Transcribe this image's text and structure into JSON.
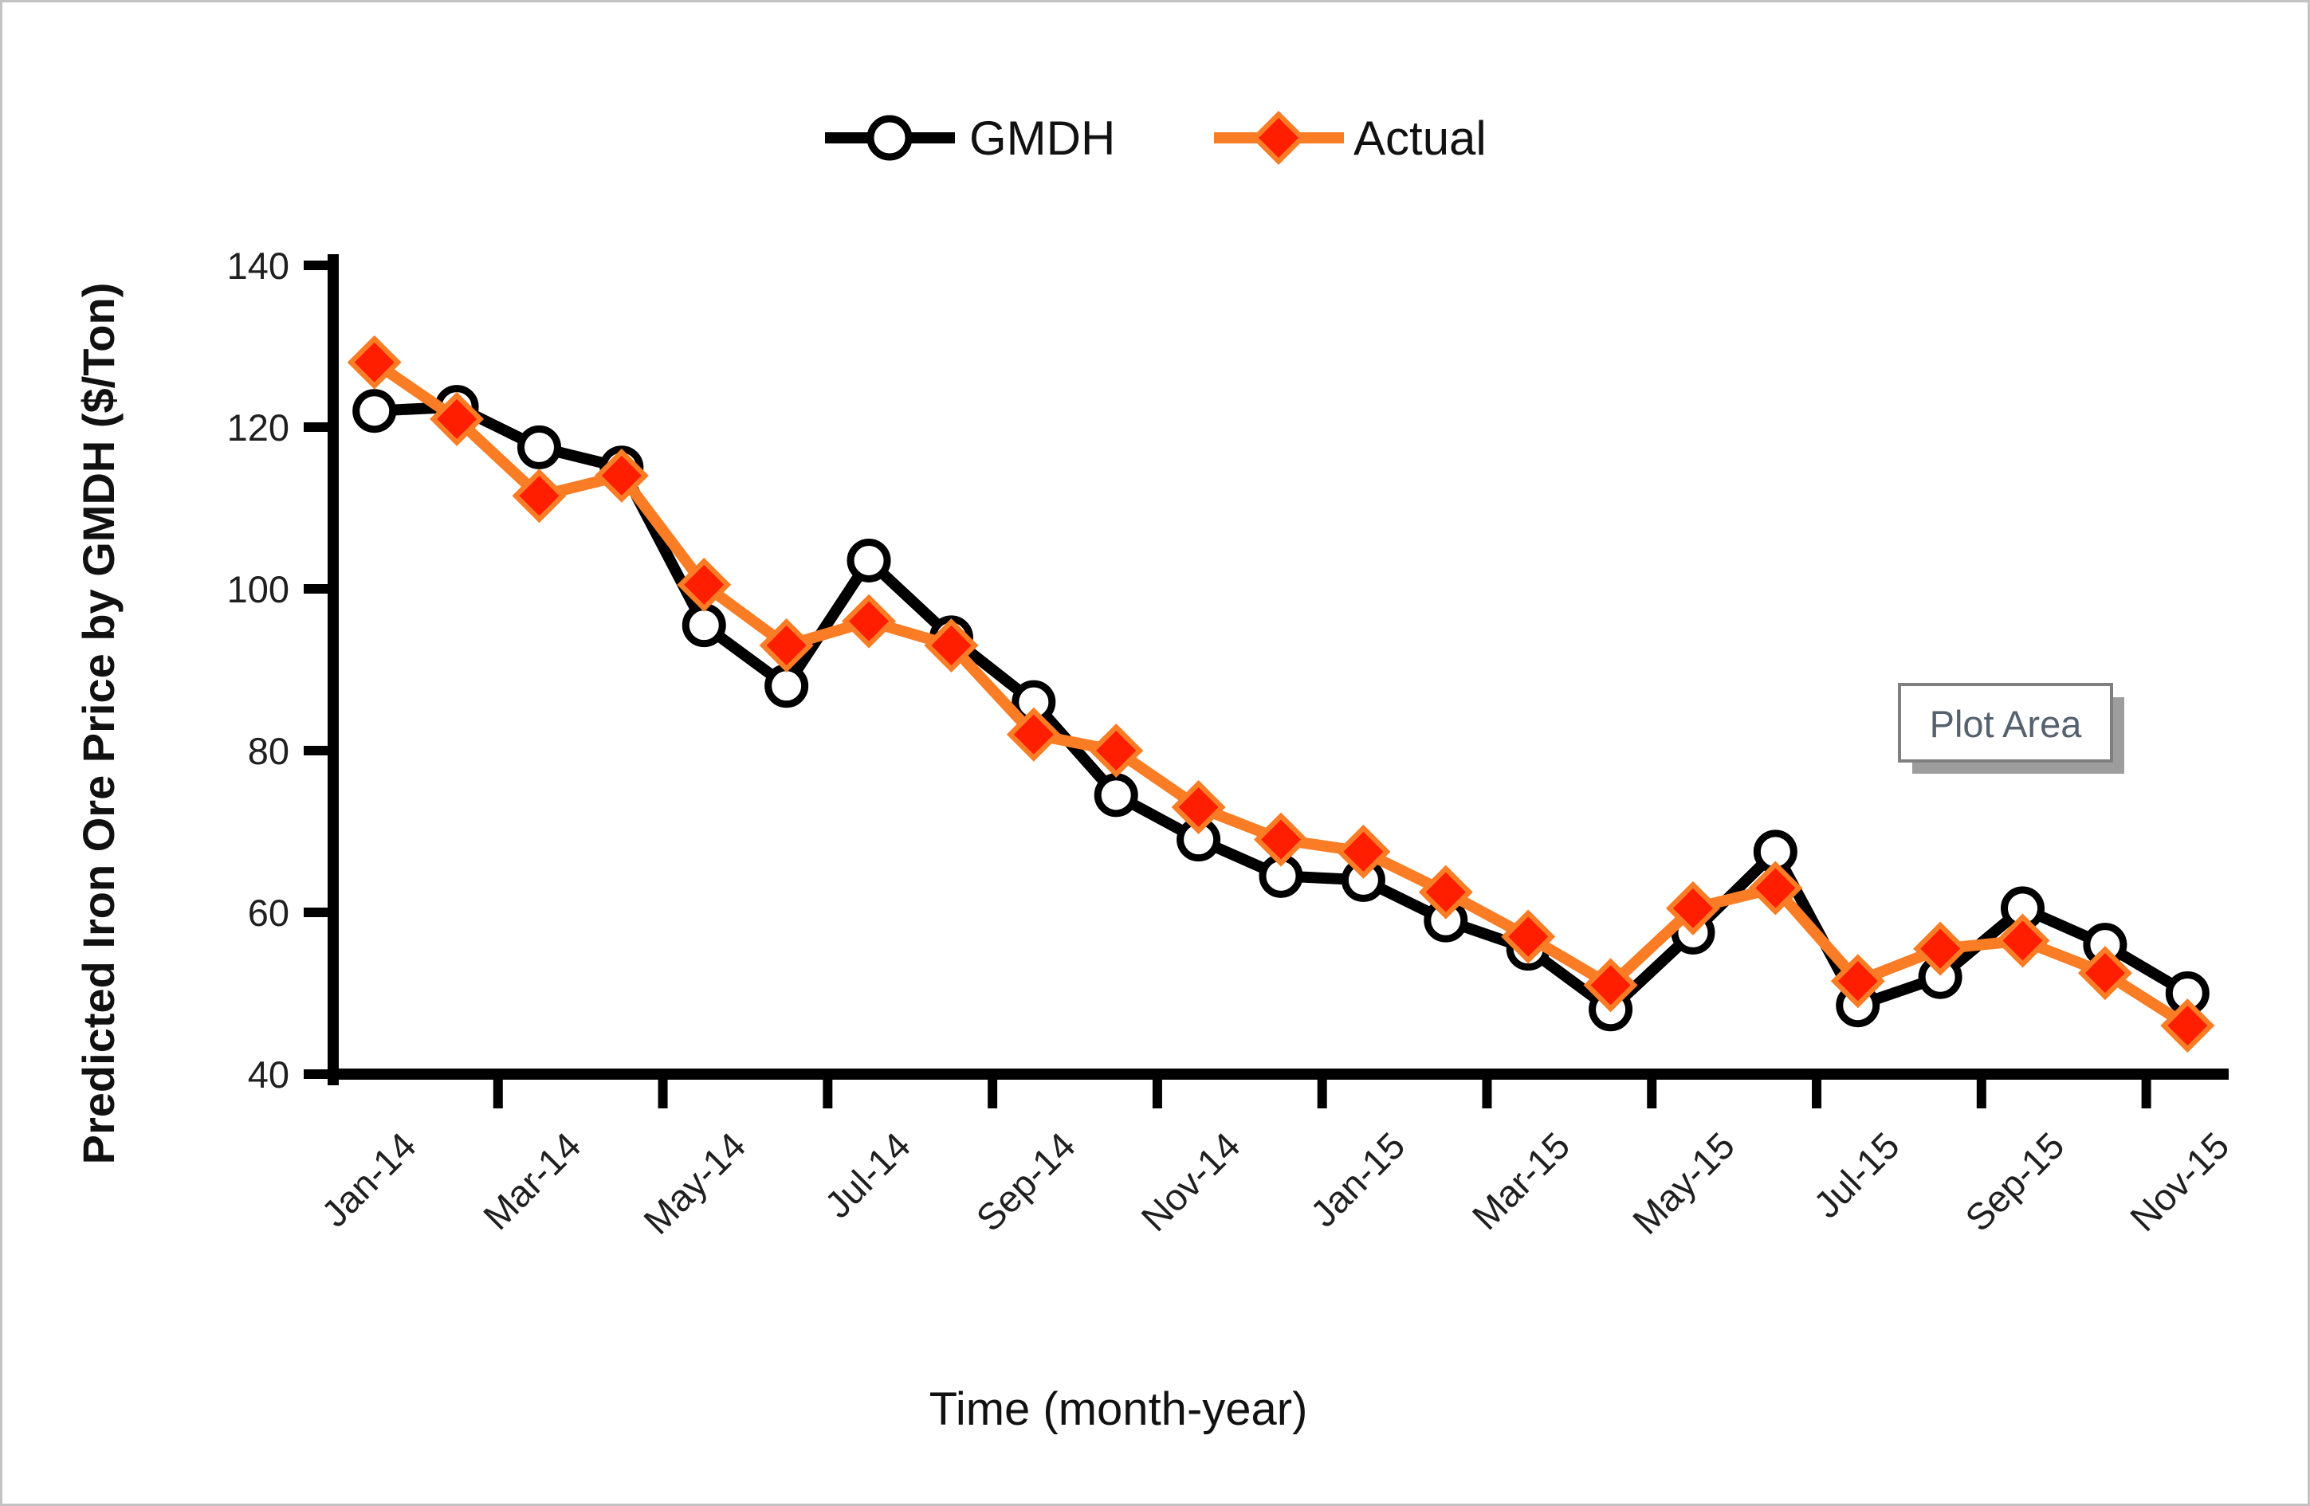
{
  "window": {
    "kind": "excel-chart-figure",
    "background": "#ffffff",
    "border_color": "#c3c3c3"
  },
  "legend": {
    "position": "top-center",
    "items": [
      {
        "label": "GMDH",
        "line_color": "#000000",
        "marker": "open-circle",
        "marker_fill": "#ffffff",
        "marker_stroke": "#000000"
      },
      {
        "label": "Actual",
        "line_color": "#fa7d25",
        "marker": "diamond",
        "marker_fill": "#ff1f00",
        "marker_stroke": "#fa7d25"
      }
    ]
  },
  "plot_area_tooltip": {
    "text": "Plot Area",
    "box_fill": "#ffffff",
    "box_border": "#7f7f7f",
    "shadow": "#9d9d9d",
    "text_color": "#55616e"
  },
  "chart_data": {
    "type": "line",
    "title": "",
    "xlabel": "Time (month-year)",
    "ylabel": "Predicted Iron Ore Price by GMDH ($/Ton)",
    "ylim": [
      40,
      140
    ],
    "yticks": [
      40,
      60,
      80,
      100,
      120,
      140
    ],
    "grid": false,
    "legend_position": "top-center",
    "categories": [
      "Jan-14",
      "Feb-14",
      "Mar-14",
      "Apr-14",
      "May-14",
      "Jun-14",
      "Jul-14",
      "Aug-14",
      "Sep-14",
      "Oct-14",
      "Nov-14",
      "Dec-14",
      "Jan-15",
      "Feb-15",
      "Mar-15",
      "Apr-15",
      "May-15",
      "Jun-15",
      "Jul-15",
      "Aug-15",
      "Sep-15",
      "Oct-15",
      "Nov-15"
    ],
    "xtick_labels": [
      "Jan-14",
      "Mar-14",
      "May-14",
      "Jul-14",
      "Sep-14",
      "Nov-14",
      "Jan-15",
      "Mar-15",
      "May-15",
      "Jul-15",
      "Sep-15",
      "Nov-15"
    ],
    "series": [
      {
        "name": "GMDH",
        "color": "#000000",
        "marker": "open-circle",
        "marker_fill": "#ffffff",
        "values": [
          122,
          122.5,
          117.5,
          115,
          95.5,
          88,
          103.5,
          94,
          86,
          74.5,
          69,
          64.5,
          64,
          59,
          55.5,
          48,
          57.5,
          67.5,
          48.5,
          52,
          60.5,
          56,
          50
        ]
      },
      {
        "name": "Actual",
        "color": "#fa7d25",
        "marker": "diamond",
        "marker_fill": "#ff1f00",
        "values": [
          128,
          121,
          111.5,
          114,
          100.5,
          93,
          96,
          93,
          82,
          80,
          73,
          69,
          67.5,
          62.5,
          57,
          51,
          60.5,
          63,
          51.5,
          55.5,
          56.5,
          52.5,
          46
        ]
      }
    ]
  }
}
